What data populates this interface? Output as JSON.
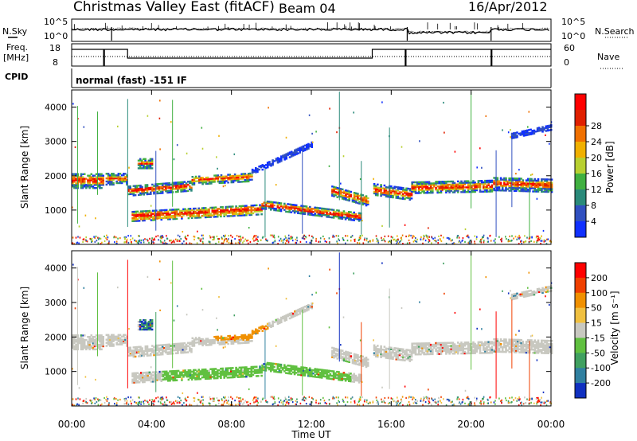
{
  "header": {
    "title": "Christmas Valley East (fitACF)",
    "beam": "Beam 04",
    "date": "16/Apr/2012"
  },
  "param_panels": {
    "nsky_label": "N.Sky",
    "nsearch_label": "N.Search",
    "noise_ticks": [
      "10^5",
      "10^0"
    ],
    "freq_label_line1": "Freq.",
    "freq_label_line2": "[MHz]",
    "freq_ticks": [
      "18",
      "8"
    ],
    "nave_label": "Nave",
    "nave_ticks": [
      "60",
      "0"
    ],
    "cpid_label": "CPID",
    "cpid_text": "normal (fast) -151 IF"
  },
  "chart_data": [
    {
      "type": "heatmap",
      "name": "power",
      "xlabel": "",
      "ylabel": "Slant Range [km]",
      "xlim": [
        0,
        24
      ],
      "ylim": [
        0,
        4500
      ],
      "yticks": [
        "1000",
        "2000",
        "3000",
        "4000"
      ],
      "colorbar_label": "Power [dB]",
      "colorbar_ticks": [
        "4",
        "8",
        "12",
        "16",
        "20",
        "24",
        "28"
      ],
      "colorbar_colors": [
        "#1030ff",
        "#3050c0",
        "#2a8a7a",
        "#40b040",
        "#b8d030",
        "#f0b000",
        "#f07000",
        "#e02000",
        "#ff0000"
      ]
    },
    {
      "type": "heatmap",
      "name": "velocity",
      "xlabel": "Time UT",
      "ylabel": "Slant Range [km]",
      "xlim": [
        0,
        24
      ],
      "ylim": [
        0,
        4500
      ],
      "yticks": [
        "1000",
        "2000",
        "3000",
        "4000"
      ],
      "xticks": [
        "00:00",
        "04:00",
        "08:00",
        "12:00",
        "16:00",
        "20:00",
        "00:00"
      ],
      "colorbar_label": "Velocity [m s⁻¹]",
      "colorbar_ticks": [
        "200",
        "100",
        "50",
        "15",
        "-15",
        "-50",
        "-100",
        "-200"
      ],
      "colorbar_colors": [
        "#1030c0",
        "#3080a0",
        "#40a060",
        "#60c040",
        "#c8c8c0",
        "#f0c040",
        "#f09000",
        "#f04000",
        "#ff0000"
      ]
    }
  ]
}
